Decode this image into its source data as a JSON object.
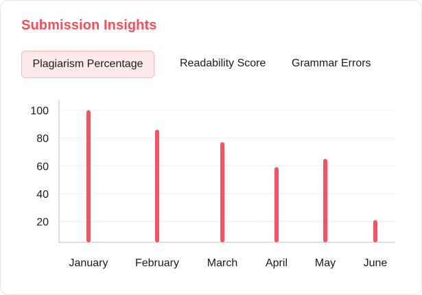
{
  "header": {
    "title": "Submission Insights"
  },
  "tabs": [
    {
      "label": "Plagiarism Percentage",
      "active": true
    },
    {
      "label": "Readability Score",
      "active": false
    },
    {
      "label": "Grammar Errors",
      "active": false
    }
  ],
  "colors": {
    "accent": "#f0505a",
    "bar": "#f5545e",
    "tab_active_bg": "#fde9e9",
    "tab_active_border": "#f5b7b9"
  },
  "chart_data": {
    "type": "bar",
    "categories": [
      "January",
      "February",
      "March",
      "April",
      "May",
      "June"
    ],
    "values": [
      100,
      86,
      77,
      59,
      65,
      21
    ],
    "yticks": [
      20,
      40,
      60,
      80,
      100
    ],
    "ylim": [
      5,
      100
    ],
    "grid": true,
    "xlabel": "",
    "ylabel": ""
  }
}
